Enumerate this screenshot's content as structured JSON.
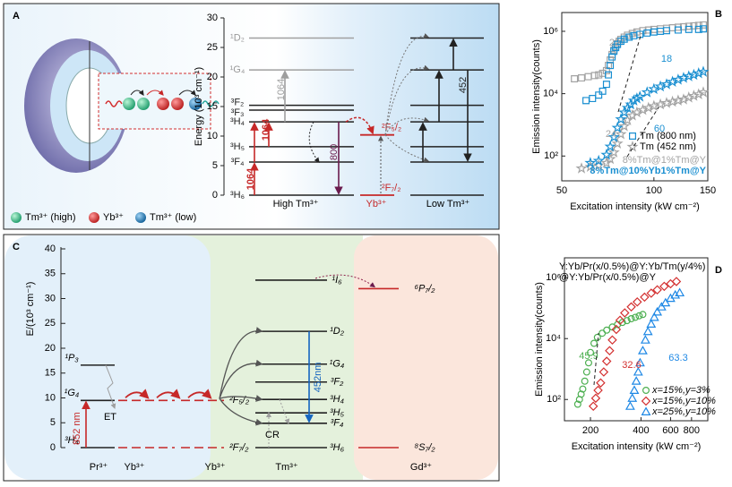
{
  "panel_labels": [
    "A",
    "B",
    "C",
    "D"
  ],
  "panel_a": {
    "legend": [
      "Tm³⁺ (high)",
      "Yb³⁺",
      "Tm³⁺ (low)"
    ],
    "axis_label": "Energy (10³ cm⁻¹)",
    "ylim": [
      0,
      30
    ],
    "yticks": [
      0,
      5,
      10,
      15,
      20,
      25,
      30
    ],
    "high_tm": {
      "label": "High Tm³⁺",
      "levels": [
        {
          "label": "³H₆",
          "energy": 0
        },
        {
          "label": "³F₄",
          "energy": 5.6
        },
        {
          "label": "³H₅",
          "energy": 8.2
        },
        {
          "label": "³H₄",
          "energy": 12.4
        },
        {
          "label": "³F₃",
          "energy": 14.4
        },
        {
          "label": "³F₂",
          "energy": 15.2
        },
        {
          "label": "¹G₄",
          "energy": 21.2
        },
        {
          "label": "¹D₂",
          "energy": 26.6
        }
      ]
    },
    "yb": {
      "label": "Yb³⁺",
      "levels": [
        {
          "label": "²F₇/₂",
          "energy": 0
        },
        {
          "label": "²F₅/₂",
          "energy": 10.2
        }
      ]
    },
    "low_tm": {
      "label": "Low Tm³⁺"
    },
    "transitions": [
      "1064",
      "1064",
      "1064",
      "800",
      "452"
    ]
  },
  "panel_c": {
    "axis_label": "E/(10³ cm⁻¹)",
    "ylim": [
      0,
      40
    ],
    "yticks": [
      0,
      5,
      10,
      15,
      20,
      25,
      30,
      35,
      40
    ],
    "pr": {
      "label": "Pr³⁺",
      "levels": [
        {
          "label": "³H₄",
          "energy": 0
        },
        {
          "label": "¹G₄",
          "energy": 9.5
        },
        {
          "label": "¹P₃",
          "energy": 16.6
        }
      ]
    },
    "yb1": {
      "label": "Yb³⁺",
      "levels": [
        {
          "energy": 0
        },
        {
          "energy": 9.5
        }
      ]
    },
    "yb2": {
      "label": "Yb³⁺",
      "levels": [
        {
          "label": "²F₇/₂",
          "energy": 0
        },
        {
          "label": "²F₅/₂",
          "energy": 9.5
        }
      ]
    },
    "tm": {
      "label": "Tm³⁺",
      "levels": [
        {
          "label": "³H₆",
          "energy": 0
        },
        {
          "label": "³F₄",
          "energy": 4.9
        },
        {
          "label": "³H₅",
          "energy": 7.0
        },
        {
          "label": "³H₄",
          "energy": 9.7
        },
        {
          "label": "³F₂",
          "energy": 13.2
        },
        {
          "label": "¹G₄",
          "energy": 16.8
        },
        {
          "label": "¹D₂",
          "energy": 23.4
        },
        {
          "label": "¹I₆",
          "energy": 33.7
        }
      ]
    },
    "gd": {
      "label": "Gd³⁺",
      "levels": [
        {
          "label": "⁸S₇/₂",
          "energy": 0
        },
        {
          "label": "⁶P₇/₂",
          "energy": 32
        }
      ]
    },
    "transitions": [
      "852 nm",
      "452nm"
    ],
    "processes": [
      "ET",
      "CR"
    ]
  },
  "chart_data": [
    {
      "type": "scatter",
      "xlog": true,
      "ylog": true,
      "xlabel": "Excitation intensity (kW cm⁻²)",
      "ylabel": "Emission intensity(counts)",
      "xlim": [
        50,
        150
      ],
      "xticks": [
        50,
        100,
        150
      ],
      "ylim": [
        16,
        4000000
      ],
      "yticks": [
        {
          "value": 100,
          "label": "10²"
        },
        {
          "value": 10000,
          "label": "10⁴"
        },
        {
          "value": 1000000,
          "label": "10⁶"
        }
      ],
      "series": [
        {
          "name": "Tm (800 nm)",
          "marker": "square",
          "color": "#a3a3a3",
          "x": [
            55,
            58,
            61,
            64,
            66,
            68,
            70,
            71,
            72,
            73,
            74,
            75,
            76,
            77,
            78,
            80,
            82,
            85,
            88,
            92,
            96,
            100,
            105,
            110,
            115,
            120,
            125,
            130,
            135,
            140,
            145
          ],
          "values": [
            30000,
            32000,
            35000,
            38000,
            40000,
            45000,
            55000,
            80000,
            120000,
            180000,
            250000,
            320000,
            400000,
            480000,
            550000,
            650000,
            750000,
            850000,
            950000,
            1050000,
            1100000,
            1150000,
            1200000,
            1250000,
            1300000,
            1350000,
            1400000,
            1450000,
            1500000,
            1550000,
            1600000
          ]
        },
        {
          "name": "Tm (452 nm)",
          "marker": "star",
          "color": "#a3a3a3",
          "x": [
            58,
            62,
            66,
            70,
            72,
            74,
            76,
            78,
            80,
            82,
            85,
            88,
            92,
            96,
            100,
            105,
            110,
            115,
            120,
            125,
            130,
            135,
            140,
            145
          ],
          "values": [
            40,
            45,
            50,
            60,
            80,
            130,
            250,
            500,
            900,
            1400,
            2000,
            2500,
            3000,
            3500,
            4000,
            4500,
            5000,
            5500,
            6000,
            6500,
            7500,
            8500,
            9500,
            11000
          ]
        },
        {
          "name": "Tm (800 nm)",
          "marker": "square",
          "color": "#1a8fd1",
          "x": [
            60,
            63,
            66,
            68,
            70,
            71,
            72,
            73,
            74,
            75,
            76,
            78,
            80,
            83,
            86,
            90,
            95,
            100,
            105,
            110,
            120,
            130,
            140,
            145
          ],
          "values": [
            6000,
            7000,
            9000,
            12000,
            20000,
            40000,
            80000,
            150000,
            230000,
            300000,
            380000,
            480000,
            560000,
            650000,
            720000,
            800000,
            880000,
            950000,
            1000000,
            1050000,
            1100000,
            1150000,
            1150000,
            1200000
          ]
        },
        {
          "name": "Tm (452 nm)",
          "marker": "star",
          "color": "#1a8fd1",
          "x": [
            62,
            66,
            70,
            72,
            74,
            76,
            78,
            80,
            82,
            84,
            86,
            88,
            90,
            95,
            100,
            105,
            110,
            115,
            120,
            125,
            130,
            135,
            140,
            145
          ],
          "values": [
            60,
            70,
            110,
            200,
            400,
            800,
            1500,
            2500,
            3500,
            4500,
            6000,
            7000,
            8000,
            11000,
            14000,
            17000,
            20000,
            24000,
            28000,
            32000,
            36000,
            40000,
            45000,
            50000
          ]
        }
      ],
      "samples": [
        {
          "name": "8%Tm@1%Tm@Y",
          "color": "#a3a3a3"
        },
        {
          "name": "8%Tm@10%Yb1%Tm@Y",
          "color": "#1a8fd1"
        }
      ],
      "annotations": [
        "22",
        "18",
        "24",
        "60"
      ]
    },
    {
      "type": "scatter",
      "xlog": true,
      "ylog": true,
      "xlabel": "Excitation intensity (kW cm⁻²)",
      "ylabel": "Emission intensity(counts)",
      "xlim": [
        140,
        1000
      ],
      "xticks": [
        200,
        400,
        600,
        800
      ],
      "ylim": [
        20,
        4500000
      ],
      "yticks": [
        {
          "value": 100,
          "label": "10²"
        },
        {
          "value": 10000,
          "label": "10⁴"
        },
        {
          "value": 1000000,
          "label": "10⁶"
        }
      ],
      "notes": [
        "Y:Yb/Pr(x/0.5%)@Y:Yb/Tm(y/4%)",
        "@Y:Yb/Pr(x/0.5%)@Y"
      ],
      "series": [
        {
          "name": "x=15%,y=3%",
          "marker": "circle",
          "color": "#4caf50",
          "x": [
            168,
            172,
            176,
            180,
            185,
            190,
            195,
            200,
            210,
            220,
            235,
            250,
            270,
            290,
            310,
            330,
            350,
            370,
            390,
            410
          ],
          "values": [
            70,
            100,
            150,
            220,
            400,
            800,
            1600,
            3500,
            7000,
            11000,
            15000,
            19000,
            24000,
            29000,
            34000,
            39000,
            45000,
            50000,
            56000,
            62000
          ]
        },
        {
          "name": "x=15%,y=10%",
          "marker": "diamond",
          "color": "#d32f2f",
          "x": [
            208,
            215,
            222,
            230,
            240,
            250,
            260,
            270,
            285,
            300,
            320,
            350,
            380,
            420,
            460,
            500,
            550,
            600,
            650
          ],
          "values": [
            60,
            110,
            200,
            350,
            800,
            1800,
            4000,
            9000,
            20000,
            40000,
            70000,
            110000,
            160000,
            230000,
            310000,
            400000,
            520000,
            630000,
            750000
          ]
        },
        {
          "name": "x=25%,y=10%",
          "marker": "triangle",
          "color": "#1e88e5",
          "x": [
            345,
            355,
            365,
            375,
            385,
            395,
            410,
            425,
            440,
            460,
            480,
            500,
            530,
            560,
            600,
            640,
            680
          ],
          "values": [
            60,
            110,
            200,
            400,
            800,
            1600,
            4000,
            9000,
            17000,
            30000,
            50000,
            75000,
            110000,
            150000,
            210000,
            270000,
            320000
          ]
        }
      ],
      "annotations": [
        "45.9",
        "32.6",
        "63.3"
      ]
    }
  ]
}
